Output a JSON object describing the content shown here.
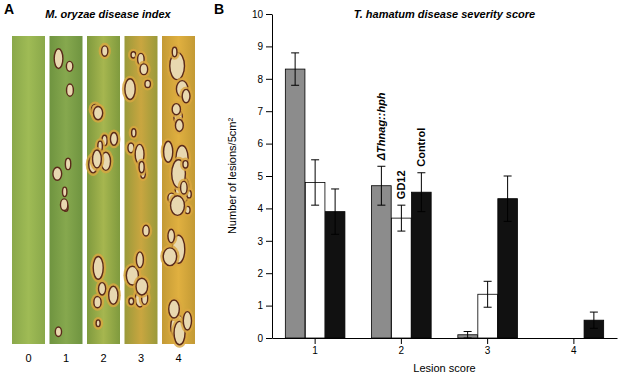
{
  "chart_data": {
    "type": "bar",
    "title": "T. hamatum disease severity score",
    "x_label": "Lesion score",
    "y_label": "Number of lesions/5cm²",
    "categories": [
      "1",
      "2",
      "3",
      "4"
    ],
    "series": [
      {
        "name": "ΔThnag::hph",
        "color": "#8c8c8c",
        "values": [
          8.3,
          4.7,
          0.1,
          0
        ],
        "errors": [
          0.5,
          0.6,
          0.1,
          null
        ]
      },
      {
        "name": "GD12",
        "color": "#ffffff",
        "values": [
          4.8,
          3.7,
          1.35,
          0
        ],
        "errors": [
          0.7,
          0.4,
          0.4,
          null
        ]
      },
      {
        "name": "Control",
        "color": "#111111",
        "values": [
          3.9,
          4.5,
          4.3,
          0.55
        ],
        "errors": [
          0.7,
          0.6,
          0.7,
          0.25
        ]
      }
    ],
    "ylim": [
      0,
      10
    ],
    "yticks": [
      0,
      1,
      2,
      3,
      4,
      5,
      6,
      7,
      8,
      9,
      10
    ]
  },
  "panel_a": {
    "letter": "A",
    "title": "M. oryzae disease index",
    "leaf_labels": [
      0,
      1,
      2,
      3,
      4
    ]
  },
  "panel_b": {
    "letter": "B"
  }
}
